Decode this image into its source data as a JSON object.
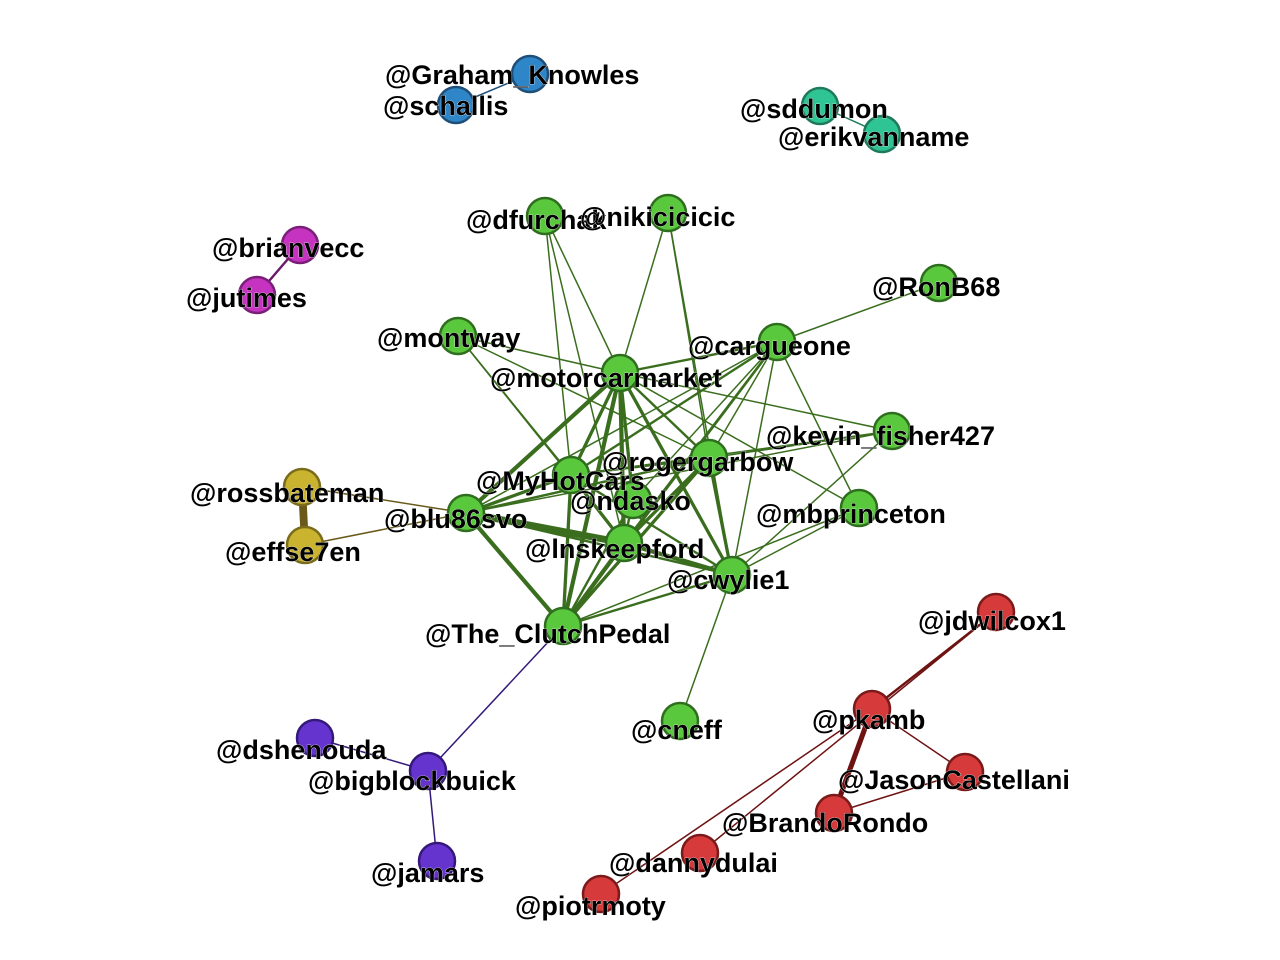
{
  "groups": {
    "blue": {
      "fill": "#2e86c8",
      "stroke": "#1f4f78",
      "edge": "#1f4f78"
    },
    "teal": {
      "fill": "#2fc494",
      "stroke": "#1f7a5c",
      "edge": "#1f7a5c"
    },
    "pink": {
      "fill": "#c533c0",
      "stroke": "#7a1f77",
      "edge": "#6a1a6a"
    },
    "green": {
      "fill": "#5ac83c",
      "stroke": "#2e6e1e",
      "edge": "#3a6e1e"
    },
    "yellow": {
      "fill": "#c9b32f",
      "stroke": "#7a6c1a",
      "edge": "#6a5a1a"
    },
    "purple": {
      "fill": "#6534cf",
      "stroke": "#35197a",
      "edge": "#35197a"
    },
    "red": {
      "fill": "#d63a3a",
      "stroke": "#7a1a1a",
      "edge": "#6e1212"
    }
  },
  "nodes": [
    {
      "id": "graham",
      "label": "@Graham_Knowles",
      "group": "blue"
    },
    {
      "id": "schallis",
      "label": "@schallis",
      "group": "blue"
    },
    {
      "id": "sddumon",
      "label": "@sddumon",
      "group": "teal"
    },
    {
      "id": "erikvanname",
      "label": "@erikvanname",
      "group": "teal"
    },
    {
      "id": "brianvecc",
      "label": "@brianvecc",
      "group": "pink"
    },
    {
      "id": "jutimes",
      "label": "@jutimes",
      "group": "pink"
    },
    {
      "id": "dfurchak",
      "label": "@dfurchak",
      "group": "green"
    },
    {
      "id": "nikicicicic",
      "label": "@nikicicicic",
      "group": "green"
    },
    {
      "id": "ronb68",
      "label": "@RonB68",
      "group": "green"
    },
    {
      "id": "montway",
      "label": "@montway",
      "group": "green"
    },
    {
      "id": "cargueone",
      "label": "@cargueone",
      "group": "green"
    },
    {
      "id": "motorcarmarket",
      "label": "@motorcarmarket",
      "group": "green"
    },
    {
      "id": "kevinfisher",
      "label": "@kevin_fisher427",
      "group": "green"
    },
    {
      "id": "rogergarbow",
      "label": "@rogergarbow",
      "group": "green"
    },
    {
      "id": "myhotcars",
      "label": "@MyHotCars",
      "group": "green"
    },
    {
      "id": "ndasko",
      "label": "@ndasko",
      "group": "green"
    },
    {
      "id": "blu86svo",
      "label": "@blu86svo",
      "group": "green"
    },
    {
      "id": "mbprinceton",
      "label": "@mbprinceton",
      "group": "green"
    },
    {
      "id": "lnskeepford",
      "label": "@lnskeepford",
      "group": "green"
    },
    {
      "id": "cwylie1",
      "label": "@cwylie1",
      "group": "green"
    },
    {
      "id": "clutchpedal",
      "label": "@The_ClutchPedal",
      "group": "green"
    },
    {
      "id": "cneff",
      "label": "@cneff",
      "group": "green"
    },
    {
      "id": "rossbateman",
      "label": "@rossbateman",
      "group": "yellow"
    },
    {
      "id": "effse7en",
      "label": "@effse7en",
      "group": "yellow"
    },
    {
      "id": "dshenouda",
      "label": "@dshenouda",
      "group": "purple"
    },
    {
      "id": "bigblockbuick",
      "label": "@bigblockbuick",
      "group": "purple"
    },
    {
      "id": "jamars",
      "label": "@jamars",
      "group": "purple"
    },
    {
      "id": "jdwilcox1",
      "label": "@jdwilcox1",
      "group": "red"
    },
    {
      "id": "pkamb",
      "label": "@pkamb",
      "group": "red"
    },
    {
      "id": "jasoncastellani",
      "label": "@JasonCastellani",
      "group": "red"
    },
    {
      "id": "brandorondo",
      "label": "@BrandoRondo",
      "group": "red"
    },
    {
      "id": "dannydulai",
      "label": "@dannydulai",
      "group": "red"
    },
    {
      "id": "piotrmoty",
      "label": "@piotrmoty",
      "group": "red"
    }
  ],
  "edges": [
    {
      "source": "graham",
      "target": "schallis",
      "weight": 1
    },
    {
      "source": "sddumon",
      "target": "erikvanname",
      "weight": 1
    },
    {
      "source": "brianvecc",
      "target": "jutimes",
      "weight": 2
    },
    {
      "source": "rossbateman",
      "target": "effse7en",
      "weight": 8
    },
    {
      "source": "rossbateman",
      "target": "blu86svo",
      "weight": 1
    },
    {
      "source": "effse7en",
      "target": "blu86svo",
      "weight": 1
    },
    {
      "source": "dshenouda",
      "target": "bigblockbuick",
      "weight": 1
    },
    {
      "source": "bigblockbuick",
      "target": "jamars",
      "weight": 1
    },
    {
      "source": "bigblockbuick",
      "target": "clutchpedal",
      "weight": 1
    },
    {
      "source": "jdwilcox1",
      "target": "pkamb",
      "weight": 2
    },
    {
      "source": "jdwilcox1",
      "target": "dannydulai",
      "weight": 1
    },
    {
      "source": "pkamb",
      "target": "brandorondo",
      "weight": 5
    },
    {
      "source": "pkamb",
      "target": "jasoncastellani",
      "weight": 1
    },
    {
      "source": "pkamb",
      "target": "piotrmoty",
      "weight": 1
    },
    {
      "source": "brandorondo",
      "target": "jasoncastellani",
      "weight": 1
    },
    {
      "source": "dfurchak",
      "target": "motorcarmarket",
      "weight": 1
    },
    {
      "source": "dfurchak",
      "target": "myhotcars",
      "weight": 1
    },
    {
      "source": "dfurchak",
      "target": "lnskeepford",
      "weight": 1
    },
    {
      "source": "nikicicicic",
      "target": "motorcarmarket",
      "weight": 1
    },
    {
      "source": "nikicicicic",
      "target": "rogergarbow",
      "weight": 1
    },
    {
      "source": "nikicicicic",
      "target": "cwylie1",
      "weight": 1
    },
    {
      "source": "ronb68",
      "target": "cargueone",
      "weight": 1
    },
    {
      "source": "montway",
      "target": "motorcarmarket",
      "weight": 1
    },
    {
      "source": "montway",
      "target": "rogergarbow",
      "weight": 1
    },
    {
      "source": "montway",
      "target": "myhotcars",
      "weight": 1
    },
    {
      "source": "montway",
      "target": "lnskeepford",
      "weight": 1
    },
    {
      "source": "cargueone",
      "target": "motorcarmarket",
      "weight": 2
    },
    {
      "source": "cargueone",
      "target": "rogergarbow",
      "weight": 1
    },
    {
      "source": "cargueone",
      "target": "myhotcars",
      "weight": 2
    },
    {
      "source": "cargueone",
      "target": "ndasko",
      "weight": 1
    },
    {
      "source": "cargueone",
      "target": "blu86svo",
      "weight": 1
    },
    {
      "source": "cargueone",
      "target": "lnskeepford",
      "weight": 2
    },
    {
      "source": "cargueone",
      "target": "cwylie1",
      "weight": 1
    },
    {
      "source": "cargueone",
      "target": "clutchpedal",
      "weight": 2
    },
    {
      "source": "cargueone",
      "target": "mbprinceton",
      "weight": 1
    },
    {
      "source": "motorcarmarket",
      "target": "kevinfisher",
      "weight": 1
    },
    {
      "source": "motorcarmarket",
      "target": "rogergarbow",
      "weight": 2
    },
    {
      "source": "motorcarmarket",
      "target": "myhotcars",
      "weight": 3
    },
    {
      "source": "motorcarmarket",
      "target": "ndasko",
      "weight": 3
    },
    {
      "source": "motorcarmarket",
      "target": "blu86svo",
      "weight": 4
    },
    {
      "source": "motorcarmarket",
      "target": "lnskeepford",
      "weight": 4
    },
    {
      "source": "motorcarmarket",
      "target": "cwylie1",
      "weight": 3
    },
    {
      "source": "motorcarmarket",
      "target": "clutchpedal",
      "weight": 4
    },
    {
      "source": "motorcarmarket",
      "target": "mbprinceton",
      "weight": 1
    },
    {
      "source": "kevinfisher",
      "target": "rogergarbow",
      "weight": 1
    },
    {
      "source": "kevinfisher",
      "target": "myhotcars",
      "weight": 1
    },
    {
      "source": "kevinfisher",
      "target": "cwylie1",
      "weight": 1
    },
    {
      "source": "kevinfisher",
      "target": "blu86svo",
      "weight": 1
    },
    {
      "source": "rogergarbow",
      "target": "myhotcars",
      "weight": 2
    },
    {
      "source": "rogergarbow",
      "target": "lnskeepford",
      "weight": 3
    },
    {
      "source": "rogergarbow",
      "target": "cwylie1",
      "weight": 3
    },
    {
      "source": "rogergarbow",
      "target": "clutchpedal",
      "weight": 3
    },
    {
      "source": "rogergarbow",
      "target": "blu86svo",
      "weight": 2
    },
    {
      "source": "myhotcars",
      "target": "blu86svo",
      "weight": 3
    },
    {
      "source": "myhotcars",
      "target": "lnskeepford",
      "weight": 3
    },
    {
      "source": "myhotcars",
      "target": "clutchpedal",
      "weight": 3
    },
    {
      "source": "myhotcars",
      "target": "cwylie1",
      "weight": 2
    },
    {
      "source": "ndasko",
      "target": "lnskeepford",
      "weight": 2
    },
    {
      "source": "ndasko",
      "target": "clutchpedal",
      "weight": 2
    },
    {
      "source": "blu86svo",
      "target": "lnskeepford",
      "weight": 7
    },
    {
      "source": "blu86svo",
      "target": "clutchpedal",
      "weight": 4
    },
    {
      "source": "blu86svo",
      "target": "cwylie1",
      "weight": 2
    },
    {
      "source": "lnskeepford",
      "target": "clutchpedal",
      "weight": 4
    },
    {
      "source": "lnskeepford",
      "target": "cwylie1",
      "weight": 4
    },
    {
      "source": "clutchpedal",
      "target": "cwylie1",
      "weight": 2
    },
    {
      "source": "mbprinceton",
      "target": "cwylie1",
      "weight": 1
    },
    {
      "source": "mbprinceton",
      "target": "clutchpedal",
      "weight": 1
    },
    {
      "source": "cneff",
      "target": "cwylie1",
      "weight": 1
    }
  ]
}
